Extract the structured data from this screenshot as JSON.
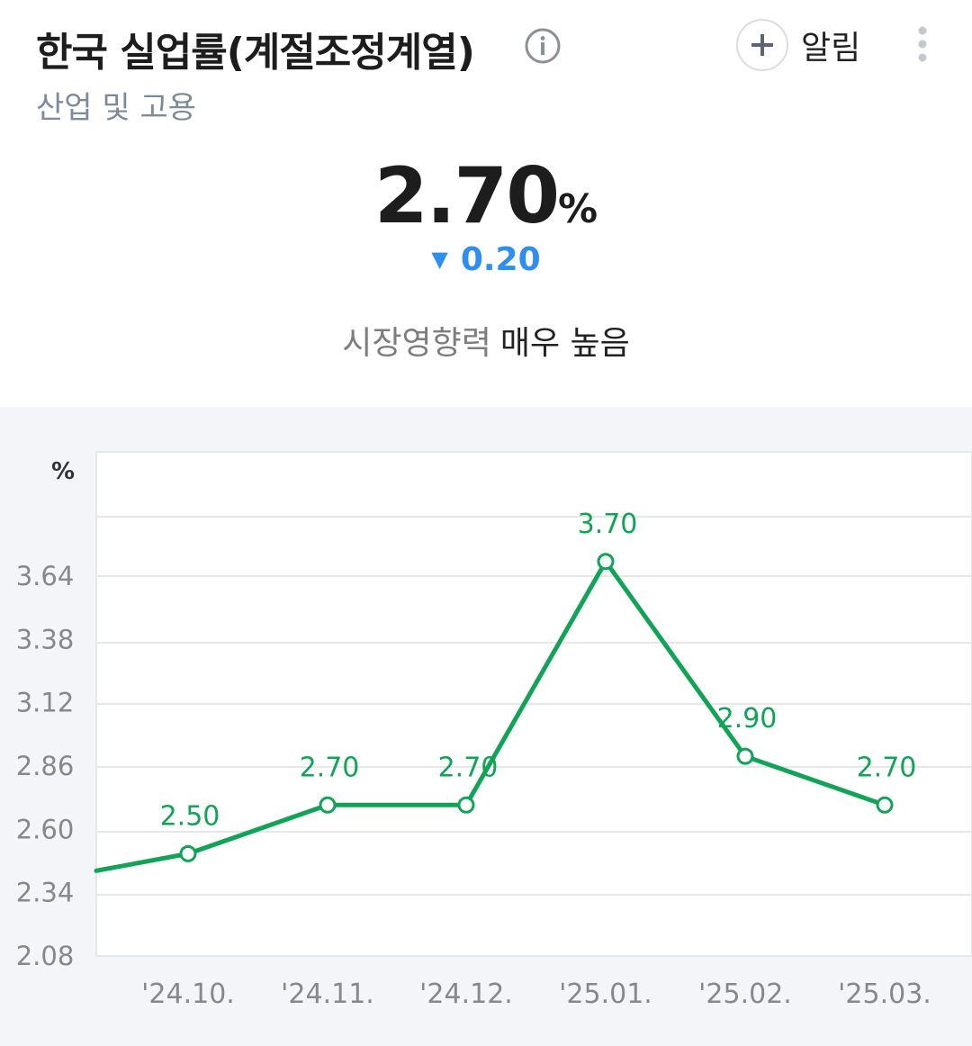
{
  "header": {
    "title": "한국 실업률(계절조정계열)",
    "category": "산업 및 고용",
    "alert_label": "알림"
  },
  "indicator": {
    "value": "2.70",
    "unit": "%",
    "change": "0.20",
    "change_direction": "down",
    "impact_label": "시장영향력",
    "impact_value": "매우 높음"
  },
  "colors": {
    "line": "#11a356",
    "change": "#2f8ff0",
    "grid": "#e6e7ea",
    "chart_bg": "#f4f5f8"
  },
  "chart_data": {
    "type": "line",
    "ylabel": "%",
    "y_ticks": [
      "3.64",
      "3.38",
      "3.12",
      "2.86",
      "2.60",
      "2.34",
      "2.08"
    ],
    "ylim": [
      2.08,
      3.9
    ],
    "categories": [
      "'24.10.",
      "'24.11.",
      "'24.12.",
      "'25.01.",
      "'25.02.",
      "'25.03."
    ],
    "series": [
      {
        "values": [
          2.5,
          2.7,
          2.7,
          3.7,
          2.9,
          2.7
        ],
        "labels": [
          "2.50",
          "2.70",
          "2.70",
          "3.70",
          "2.90",
          "2.70"
        ]
      }
    ],
    "lead_in_value": 2.43,
    "grid": true
  }
}
